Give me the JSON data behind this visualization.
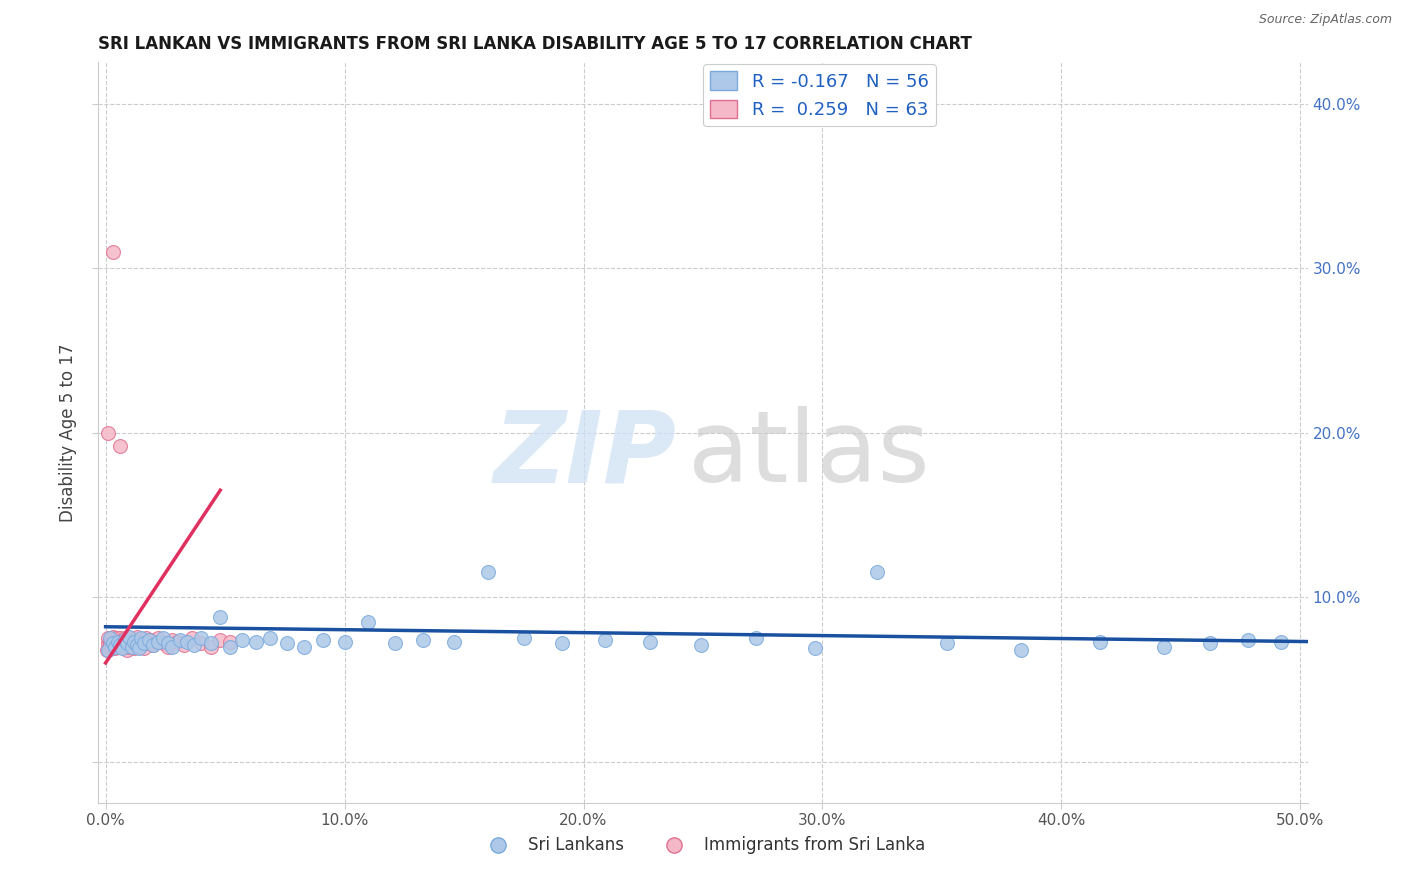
{
  "title": "SRI LANKAN VS IMMIGRANTS FROM SRI LANKA DISABILITY AGE 5 TO 17 CORRELATION CHART",
  "source": "Source: ZipAtlas.com",
  "ylabel": "Disability Age 5 to 17",
  "xlim": [
    -0.003,
    0.503
  ],
  "ylim": [
    -0.025,
    0.425
  ],
  "xticks": [
    0.0,
    0.1,
    0.2,
    0.3,
    0.4,
    0.5
  ],
  "xticklabels": [
    "0.0%",
    "10.0%",
    "20.0%",
    "30.0%",
    "40.0%",
    "50.0%"
  ],
  "yticks": [
    0.0,
    0.1,
    0.2,
    0.3,
    0.4
  ],
  "yticklabels_left": [
    "",
    "",
    "",
    "",
    ""
  ],
  "yticklabels_right": [
    "",
    "10.0%",
    "20.0%",
    "30.0%",
    "40.0%"
  ],
  "legend_r1": "R = -0.167",
  "legend_n1": "N = 56",
  "legend_r2": "R =  0.259",
  "legend_n2": "N = 63",
  "color_blue_fill": "#adc8e8",
  "color_blue_edge": "#7aaadc",
  "color_pink_fill": "#f5b8c8",
  "color_pink_edge": "#e07090",
  "color_line_blue": "#1a50a0",
  "color_line_pink": "#e03060",
  "background": "#ffffff",
  "grid_color": "#cccccc",
  "title_color": "#1a1a1a",
  "ylabel_color": "#444444",
  "xtick_color": "#555555",
  "ytick_right_color": "#4472c4",
  "legend_text_color": "#2060c0",
  "series_text_color": "#333333",
  "source_color": "#666666",
  "watermark_zip_color": "#cce0f5",
  "watermark_atlas_color": "#cccccc",
  "blue_x": [
    0.001,
    0.002,
    0.003,
    0.004,
    0.005,
    0.006,
    0.007,
    0.008,
    0.009,
    0.01,
    0.011,
    0.012,
    0.013,
    0.014,
    0.015,
    0.016,
    0.018,
    0.02,
    0.022,
    0.024,
    0.026,
    0.028,
    0.031,
    0.034,
    0.037,
    0.04,
    0.044,
    0.048,
    0.052,
    0.057,
    0.063,
    0.069,
    0.076,
    0.083,
    0.091,
    0.1,
    0.11,
    0.121,
    0.133,
    0.146,
    0.16,
    0.175,
    0.191,
    0.209,
    0.228,
    0.249,
    0.272,
    0.297,
    0.323,
    0.352,
    0.383,
    0.416,
    0.443,
    0.462,
    0.478,
    0.492
  ],
  "blue_y": [
    0.068,
    0.075,
    0.072,
    0.07,
    0.073,
    0.071,
    0.069,
    0.074,
    0.072,
    0.076,
    0.07,
    0.073,
    0.071,
    0.069,
    0.075,
    0.072,
    0.074,
    0.071,
    0.073,
    0.075,
    0.072,
    0.07,
    0.074,
    0.073,
    0.071,
    0.075,
    0.072,
    0.088,
    0.07,
    0.074,
    0.073,
    0.075,
    0.072,
    0.07,
    0.074,
    0.073,
    0.085,
    0.072,
    0.074,
    0.073,
    0.115,
    0.075,
    0.072,
    0.074,
    0.073,
    0.071,
    0.075,
    0.069,
    0.115,
    0.072,
    0.068,
    0.073,
    0.07,
    0.072,
    0.074,
    0.073
  ],
  "pink_x": [
    0.0005,
    0.001,
    0.001,
    0.0015,
    0.002,
    0.002,
    0.0025,
    0.003,
    0.003,
    0.003,
    0.0035,
    0.004,
    0.004,
    0.004,
    0.0045,
    0.005,
    0.005,
    0.005,
    0.005,
    0.006,
    0.006,
    0.006,
    0.007,
    0.007,
    0.007,
    0.008,
    0.008,
    0.008,
    0.009,
    0.009,
    0.009,
    0.01,
    0.01,
    0.01,
    0.011,
    0.011,
    0.012,
    0.012,
    0.013,
    0.013,
    0.014,
    0.015,
    0.015,
    0.016,
    0.017,
    0.018,
    0.019,
    0.02,
    0.021,
    0.022,
    0.024,
    0.026,
    0.028,
    0.03,
    0.033,
    0.036,
    0.04,
    0.044,
    0.048,
    0.052,
    0.001,
    0.006,
    0.003
  ],
  "pink_y": [
    0.068,
    0.072,
    0.075,
    0.07,
    0.073,
    0.071,
    0.069,
    0.074,
    0.072,
    0.076,
    0.07,
    0.073,
    0.071,
    0.069,
    0.075,
    0.072,
    0.074,
    0.071,
    0.073,
    0.075,
    0.072,
    0.07,
    0.074,
    0.073,
    0.071,
    0.075,
    0.072,
    0.07,
    0.074,
    0.073,
    0.068,
    0.072,
    0.075,
    0.07,
    0.073,
    0.071,
    0.069,
    0.074,
    0.072,
    0.076,
    0.07,
    0.073,
    0.071,
    0.069,
    0.075,
    0.072,
    0.074,
    0.071,
    0.073,
    0.075,
    0.072,
    0.07,
    0.074,
    0.073,
    0.071,
    0.075,
    0.072,
    0.07,
    0.074,
    0.073,
    0.2,
    0.192,
    0.31
  ],
  "pink_line_x": [
    0.0,
    0.048
  ],
  "pink_line_y_start": 0.06,
  "pink_line_y_end": 0.165,
  "blue_line_x": [
    0.0,
    0.503
  ],
  "blue_line_y_start": 0.082,
  "blue_line_y_end": 0.073
}
